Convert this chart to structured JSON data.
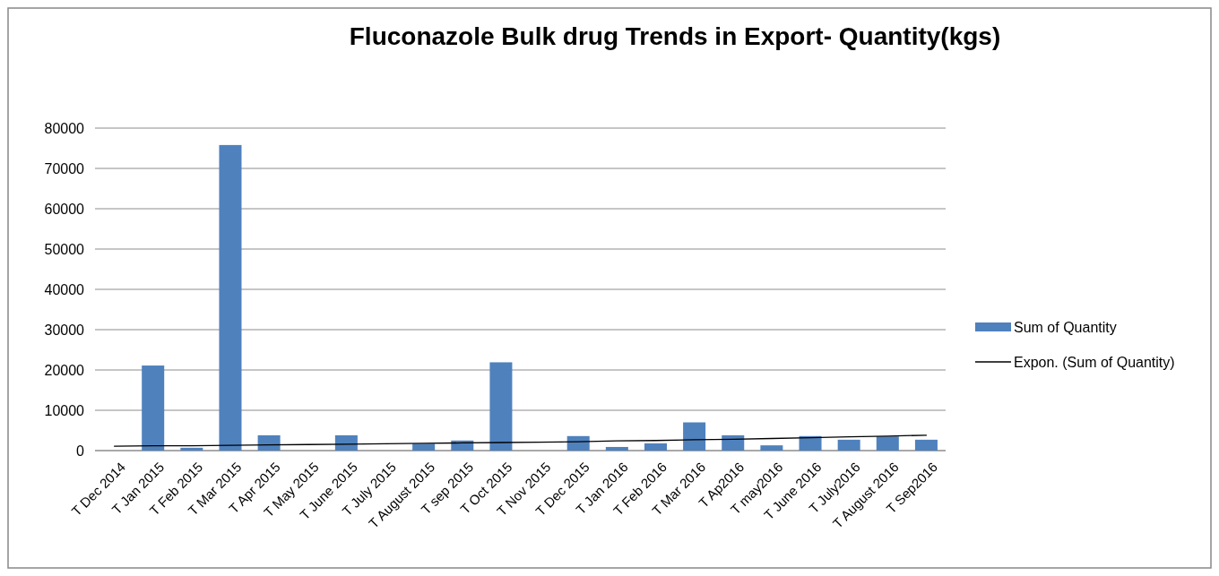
{
  "chart_data": {
    "type": "bar",
    "title": "Fluconazole Bulk drug Trends in Export- Quantity(kgs)",
    "categories": [
      "T Dec 2014",
      "T Jan 2015",
      "T Feb 2015",
      "T Mar 2015",
      "T Apr 2015",
      "T May 2015",
      "T June 2015",
      "T July 2015",
      "T August 2015",
      "T sep 2015",
      "T Oct 2015",
      "T Nov 2015",
      "T Dec 2015",
      "T Jan 2016",
      "T Feb 2016",
      "T Mar 2016",
      "T Ap2016",
      "T may2016",
      "T June 2016",
      "T July2016",
      "T August 2016",
      "T Sep2016"
    ],
    "series": [
      {
        "name": "Sum of Quantity",
        "color": "#4f81bd",
        "values": [
          0,
          21100,
          700,
          75800,
          3800,
          0,
          3800,
          0,
          1700,
          2500,
          21900,
          0,
          3600,
          900,
          1800,
          7000,
          3800,
          1300,
          3600,
          2700,
          3500,
          2700
        ]
      },
      {
        "name": "Expon. (Sum of Quantity)",
        "type": "line",
        "color": "#000000",
        "values": [
          1100,
          1200,
          1200,
          1300,
          1400,
          1500,
          1600,
          1700,
          1800,
          1900,
          2000,
          2100,
          2200,
          2400,
          2500,
          2700,
          2800,
          3000,
          3200,
          3400,
          3600,
          3800
        ]
      }
    ],
    "ylim": [
      0,
      80000
    ],
    "yticks": [
      0,
      10000,
      20000,
      30000,
      40000,
      50000,
      60000,
      70000,
      80000
    ],
    "grid": "y",
    "legend": "right"
  }
}
